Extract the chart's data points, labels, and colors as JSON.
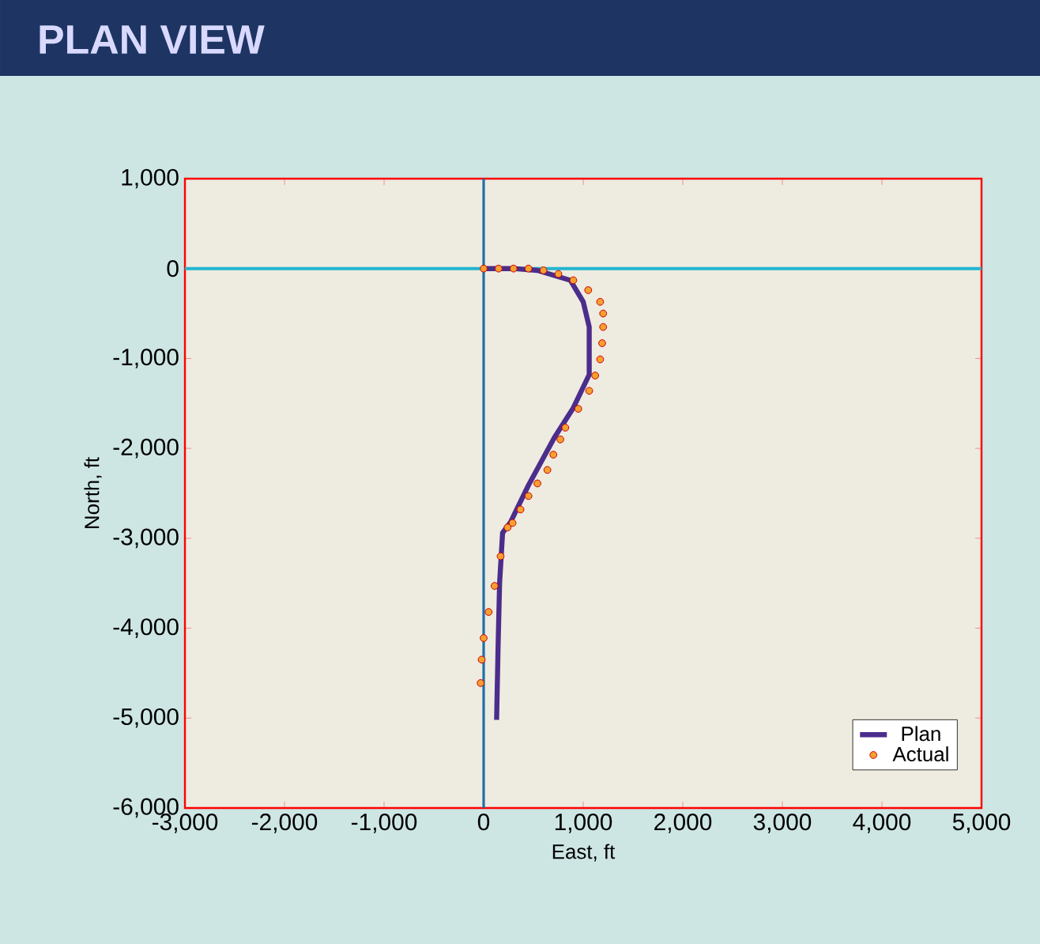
{
  "chart_data": {
    "type": "line",
    "title": "PLAN VIEW",
    "xlabel": "East, ft",
    "ylabel": "North, ft",
    "xlim": [
      -3000,
      5000
    ],
    "ylim": [
      -6000,
      1000
    ],
    "xticks": [
      {
        "value": -3000,
        "label": "-3,000"
      },
      {
        "value": -2000,
        "label": "-2,000"
      },
      {
        "value": -1000,
        "label": "-1,000"
      },
      0,
      {
        "value": 1000,
        "label": "1,000"
      },
      {
        "value": 2000,
        "label": "2,000"
      },
      {
        "value": 3000,
        "label": "3,000"
      },
      {
        "value": 4000,
        "label": "4,000"
      },
      {
        "value": 5000,
        "label": "5,000"
      }
    ],
    "yticks": [
      {
        "value": 1000,
        "label": "1,000"
      },
      0,
      {
        "value": -1000,
        "label": "-1,000"
      },
      {
        "value": -2000,
        "label": "-2,000"
      },
      {
        "value": -3000,
        "label": "-3,000"
      },
      {
        "value": -4000,
        "label": "-4,000"
      },
      {
        "value": -5000,
        "label": "-5,000"
      },
      {
        "value": -6000,
        "label": "-6,000"
      }
    ],
    "legend": "bottom right",
    "ref_lines": [
      {
        "axis": "x",
        "value": 0,
        "color": "#1f6fa8"
      },
      {
        "axis": "y",
        "value": 0,
        "color": "#22b5d0"
      }
    ],
    "series": [
      {
        "name": "Plan",
        "color": "#4b2d8c",
        "x": [
          0,
          300,
          540,
          870,
          1000,
          1060,
          1060,
          900,
          710,
          450,
          270,
          190,
          160,
          145,
          130
        ],
        "values": [
          0,
          0,
          -20,
          -130,
          -370,
          -650,
          -1180,
          -1550,
          -1880,
          -2410,
          -2820,
          -2940,
          -3500,
          -4200,
          -5020
        ]
      },
      {
        "name": "Actual",
        "type": "scatter",
        "color": "#f5a030",
        "x": [
          0,
          150,
          300,
          450,
          600,
          750,
          900,
          1050,
          1170,
          1200,
          1200,
          1190,
          1170,
          1120,
          1060,
          950,
          820,
          770,
          700,
          640,
          540,
          450,
          370,
          290,
          240,
          170,
          110,
          50,
          0,
          -20,
          -30
        ],
        "values": [
          0,
          0,
          0,
          0,
          -20,
          -60,
          -130,
          -240,
          -370,
          -500,
          -650,
          -830,
          -1010,
          -1190,
          -1360,
          -1560,
          -1770,
          -1900,
          -2070,
          -2240,
          -2390,
          -2530,
          -2680,
          -2830,
          -2880,
          -3200,
          -3530,
          -3820,
          -4110,
          -4350,
          -4610
        ]
      }
    ]
  }
}
